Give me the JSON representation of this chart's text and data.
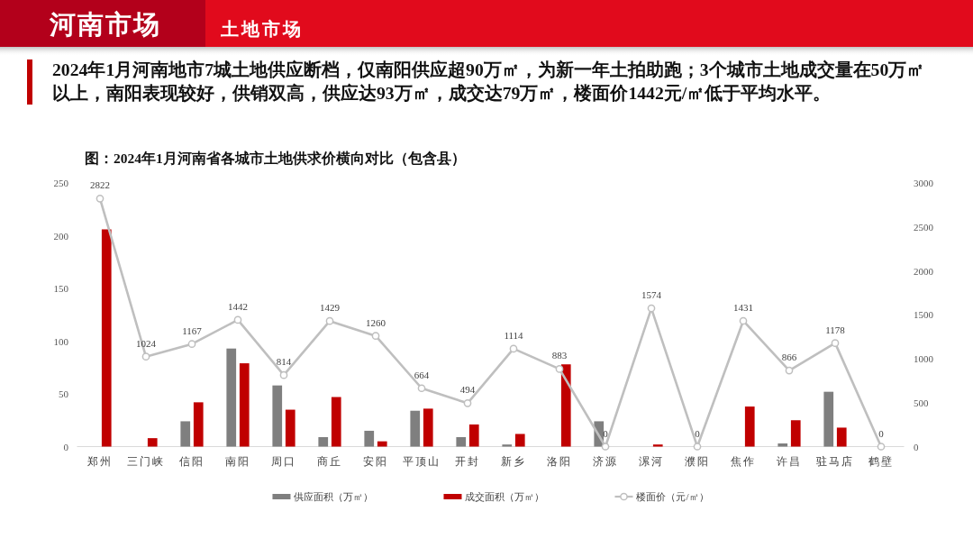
{
  "chart_data": {
    "type": "bar",
    "title": "图：2024年1月河南省各城市土地供求价横向对比（包含县）",
    "subtitle": "2024年1月河南地市7城土地供应断档，仅南阳供应超90万㎡，为新一年土拍助跑；3个城市土地成交量在50万㎡以上，南阳表现较好，供销双高，供应达93万㎡，成交达79万㎡，楼面价1442元/㎡低于平均水平。",
    "annotations": [
      "河南市场",
      "土地市场"
    ],
    "categories": [
      "郑州",
      "三门峡",
      "信阳",
      "南阳",
      "周口",
      "商丘",
      "安阳",
      "平顶山",
      "开封",
      "新乡",
      "洛阳",
      "济源",
      "漯河",
      "濮阳",
      "焦作",
      "许昌",
      "驻马店",
      "鹤壁"
    ],
    "series": [
      {
        "name": "供应面积（万㎡）",
        "color": "#7f7f7f",
        "values": [
          0,
          0,
          24,
          93,
          58,
          9,
          15,
          34,
          9,
          2,
          0,
          24,
          0,
          0,
          0,
          3,
          52,
          0
        ]
      },
      {
        "name": "成交面积（万㎡）",
        "color": "#c00000",
        "values": [
          206,
          8,
          42,
          79,
          35,
          47,
          5,
          36,
          21,
          12,
          78,
          0,
          2,
          0,
          38,
          25,
          18,
          0
        ]
      },
      {
        "name": "楼面价（元/㎡）",
        "type": "line",
        "axis": "y2",
        "color": "#bfbfbf",
        "values": [
          2822,
          1024,
          1167,
          1442,
          814,
          1429,
          1260,
          664,
          494,
          1114,
          883,
          0,
          1574,
          0,
          1431,
          866,
          1178,
          0
        ],
        "value_labels": [
          "2822",
          "1024",
          "1167",
          "1442",
          "814",
          "1429",
          "1260",
          "664",
          "494",
          "1114",
          "883",
          "0",
          "1574",
          "0",
          "1431",
          "866",
          "1178",
          "0"
        ]
      }
    ],
    "ylim": [
      0,
      250
    ],
    "yticks": [
      0,
      50,
      100,
      150,
      200,
      250
    ],
    "y2lim": [
      0,
      3000
    ],
    "y2ticks": [
      0,
      500,
      1000,
      1500,
      2000,
      2500,
      3000
    ],
    "legend": "bottom",
    "marker": "circle"
  }
}
